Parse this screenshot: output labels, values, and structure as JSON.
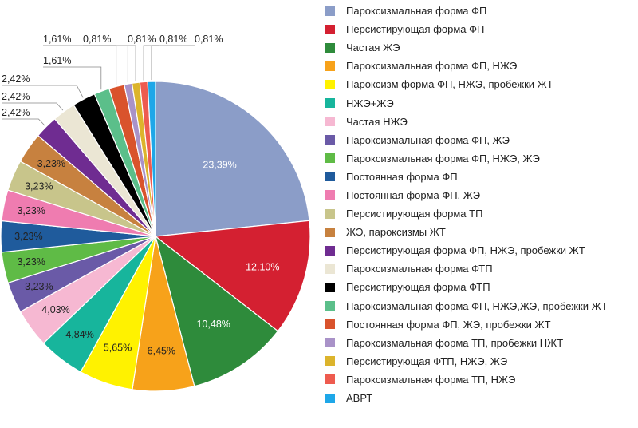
{
  "chart_data": {
    "type": "pie",
    "title": "",
    "legend_position": "right",
    "slices": [
      {
        "label": "Пароксизмальная форма ФП",
        "value": 23.39,
        "display": "23,39%",
        "color": "#8b9dc8"
      },
      {
        "label": "Персистирующая форма ФП",
        "value": 12.1,
        "display": "12,10%",
        "color": "#d42031"
      },
      {
        "label": "Частая ЖЭ",
        "value": 10.48,
        "display": "10,48%",
        "color": "#2e8b3b"
      },
      {
        "label": "Пароксизмальная форма ФП, НЖЭ",
        "value": 6.45,
        "display": "6,45%",
        "color": "#f7a21a"
      },
      {
        "label": "Пароксизм форма ФП, НЖЭ, пробежки ЖТ",
        "value": 5.65,
        "display": "5,65%",
        "color": "#fff200"
      },
      {
        "label": "НЖЭ+ЖЭ",
        "value": 4.84,
        "display": "4,84%",
        "color": "#17b59c"
      },
      {
        "label": "Частая НЖЭ",
        "value": 4.03,
        "display": "4,03%",
        "color": "#f6b8d2"
      },
      {
        "label": "Пароксизмальная форма ФП, ЖЭ",
        "value": 3.23,
        "display": "3,23%",
        "color": "#6a5aa7"
      },
      {
        "label": "Пароксизмальная форма ФП, НЖЭ, ЖЭ",
        "value": 3.23,
        "display": "3,23%",
        "color": "#5fbb46"
      },
      {
        "label": "Постоянная форма ФП",
        "value": 3.23,
        "display": "3,23%",
        "color": "#1f5b9c"
      },
      {
        "label": "Постоянная форма ФП, ЖЭ",
        "value": 3.23,
        "display": "3,23%",
        "color": "#ef7cb0"
      },
      {
        "label": "Персистирующая форма ТП",
        "value": 3.23,
        "display": "3,23%",
        "color": "#c8c58b"
      },
      {
        "label": "ЖЭ, пароксизмы ЖТ",
        "value": 3.23,
        "display": "3,23%",
        "color": "#c7813f"
      },
      {
        "label": "Персистирующая форма ФП, НЖЭ, пробежки ЖТ",
        "value": 2.42,
        "display": "2,42%",
        "color": "#6f2c91"
      },
      {
        "label": "Пароксизмальная форма ФТП",
        "value": 2.42,
        "display": "2,42%",
        "color": "#ebe6d4"
      },
      {
        "label": "Персистирующая форма ФТП",
        "value": 2.42,
        "display": "2,42%",
        "color": "#000000"
      },
      {
        "label": "Пароксизмальная форма ФП, НЖЭ,ЖЭ, пробежки ЖТ",
        "value": 1.61,
        "display": "1,61%",
        "color": "#5bbf8a"
      },
      {
        "label": "Постоянная форма ФП, ЖЭ, пробежки ЖТ",
        "value": 1.61,
        "display": "1,61%",
        "color": "#d9532c"
      },
      {
        "label": "Пароксизмальная форма ТП, пробежки НЖТ",
        "value": 0.81,
        "display": "0,81%",
        "color": "#a992c8"
      },
      {
        "label": "Персистирующая ФТП, НЖЭ, ЖЭ",
        "value": 0.81,
        "display": "0,81%",
        "color": "#dcb42c"
      },
      {
        "label": "Пароксизмальная форма ТП, НЖЭ",
        "value": 0.81,
        "display": "0,81%",
        "color": "#ee5b4f"
      },
      {
        "label": "АВРТ",
        "value": 0.81,
        "display": "0,81%",
        "color": "#1ea7e8"
      }
    ]
  }
}
